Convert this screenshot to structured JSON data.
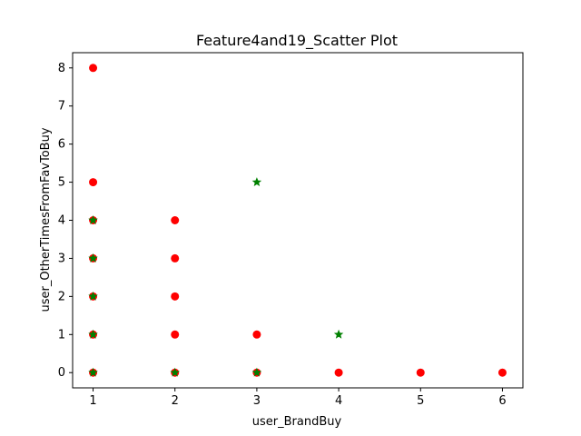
{
  "chart_data": {
    "type": "scatter",
    "title": "Feature4and19_Scatter Plot",
    "xlabel": "user_BrandBuy",
    "ylabel": "user_OtherTimesFromFavToBuy",
    "xlim": [
      0.75,
      6.25
    ],
    "ylim": [
      -0.4,
      8.4
    ],
    "xticks": [
      1,
      2,
      3,
      4,
      5,
      6
    ],
    "yticks": [
      0,
      1,
      2,
      3,
      4,
      5,
      6,
      7,
      8
    ],
    "grid": false,
    "series": [
      {
        "marker": "circle",
        "color": "#ff0000",
        "points": [
          {
            "x": 1,
            "y": 8
          },
          {
            "x": 1,
            "y": 5
          },
          {
            "x": 1,
            "y": 4
          },
          {
            "x": 1,
            "y": 3
          },
          {
            "x": 1,
            "y": 2
          },
          {
            "x": 1,
            "y": 1
          },
          {
            "x": 1,
            "y": 0
          },
          {
            "x": 2,
            "y": 4
          },
          {
            "x": 2,
            "y": 3
          },
          {
            "x": 2,
            "y": 2
          },
          {
            "x": 2,
            "y": 1
          },
          {
            "x": 2,
            "y": 0
          },
          {
            "x": 3,
            "y": 1
          },
          {
            "x": 3,
            "y": 0
          },
          {
            "x": 4,
            "y": 0
          },
          {
            "x": 5,
            "y": 0
          },
          {
            "x": 6,
            "y": 0
          }
        ]
      },
      {
        "marker": "star",
        "color": "#008000",
        "points": [
          {
            "x": 1,
            "y": 4
          },
          {
            "x": 1,
            "y": 3
          },
          {
            "x": 1,
            "y": 2
          },
          {
            "x": 1,
            "y": 1
          },
          {
            "x": 1,
            "y": 0
          },
          {
            "x": 2,
            "y": 0
          },
          {
            "x": 3,
            "y": 5
          },
          {
            "x": 3,
            "y": 0
          },
          {
            "x": 4,
            "y": 1
          }
        ]
      }
    ]
  }
}
